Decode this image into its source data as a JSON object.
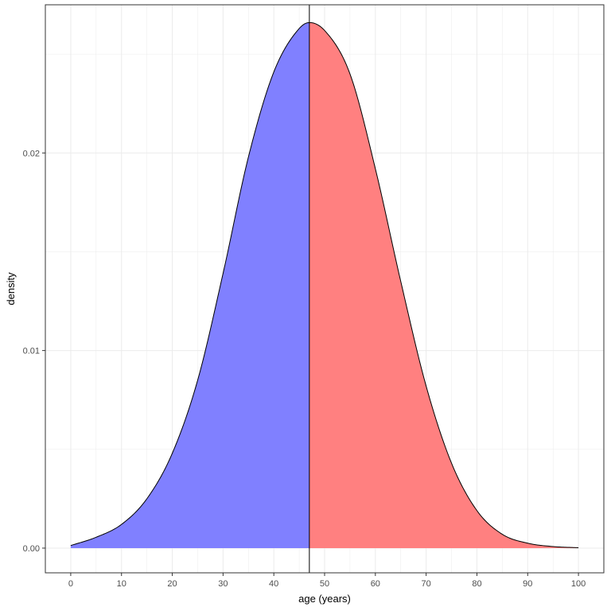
{
  "chart_data": {
    "type": "area",
    "title": "",
    "xlabel": "age (years)",
    "ylabel": "density",
    "xlim": [
      -5,
      105
    ],
    "ylim": [
      -0.00125,
      0.0275
    ],
    "x_ticks": [
      0,
      10,
      20,
      30,
      40,
      50,
      60,
      70,
      80,
      90,
      100
    ],
    "x_tick_labels": [
      "0",
      "10",
      "20",
      "30",
      "40",
      "50",
      "60",
      "70",
      "80",
      "90",
      "100"
    ],
    "y_ticks": [
      0.0,
      0.01,
      0.02
    ],
    "y_tick_labels": [
      "0.00",
      "0.01",
      "0.02"
    ],
    "grid": true,
    "split_x": 47,
    "series": [
      {
        "color": "#8080ff",
        "x_range": [
          0,
          47
        ]
      },
      {
        "color": "#ff8080",
        "x_range": [
          47,
          100
        ]
      }
    ],
    "curve": {
      "x": [
        0,
        5,
        10,
        15,
        20,
        25,
        30,
        35,
        40,
        45,
        47,
        50,
        55,
        60,
        65,
        70,
        75,
        80,
        85,
        90,
        95,
        100
      ],
      "y": [
        0.00013,
        0.00055,
        0.0012,
        0.0025,
        0.0048,
        0.0085,
        0.0139,
        0.0198,
        0.0241,
        0.0263,
        0.0266,
        0.0262,
        0.024,
        0.0192,
        0.0135,
        0.0082,
        0.0043,
        0.0019,
        0.0007,
        0.00025,
        8e-05,
        2e-05
      ]
    },
    "colors": {
      "left_fill": "#8080ff",
      "right_fill": "#ff8080",
      "outline": "#000000",
      "grid": "#ebebeb",
      "panel_border": "#333333"
    }
  }
}
